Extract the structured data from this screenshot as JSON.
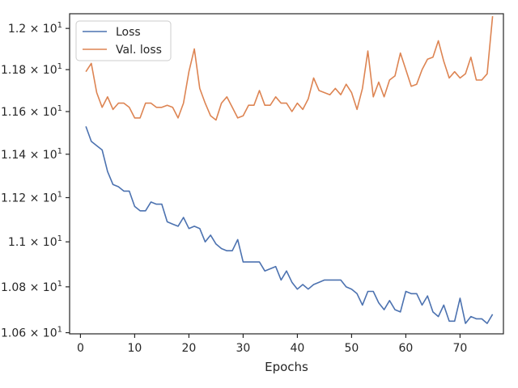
{
  "chart_data": {
    "type": "line",
    "title": "",
    "xlabel": "Epochs",
    "ylabel": "",
    "xlim": [
      -2,
      78
    ],
    "ylim": [
      10.595,
      12.072
    ],
    "yscale": "log",
    "grid": false,
    "legend_position": "upper-left",
    "x_ticks": [
      0,
      10,
      20,
      30,
      40,
      50,
      60,
      70
    ],
    "x_tick_labels": [
      "0",
      "10",
      "20",
      "30",
      "40",
      "50",
      "60",
      "70"
    ],
    "y_ticks": [
      10.6,
      10.8,
      11.0,
      11.2,
      11.4,
      11.6,
      11.8,
      12.0
    ],
    "y_tick_labels": [
      {
        "mantissa": "1.06",
        "base": "10",
        "exp": "1"
      },
      {
        "mantissa": "1.08",
        "base": "10",
        "exp": "1"
      },
      {
        "mantissa": "1.1",
        "base": "10",
        "exp": "1"
      },
      {
        "mantissa": "1.12",
        "base": "10",
        "exp": "1"
      },
      {
        "mantissa": "1.14",
        "base": "10",
        "exp": "1"
      },
      {
        "mantissa": "1.16",
        "base": "10",
        "exp": "1"
      },
      {
        "mantissa": "1.18",
        "base": "10",
        "exp": "1"
      },
      {
        "mantissa": "1.2",
        "base": "10",
        "exp": "1"
      }
    ],
    "series": [
      {
        "name": "Loss",
        "color": "#4c72b0",
        "x": [
          1,
          2,
          3,
          4,
          5,
          6,
          7,
          8,
          9,
          10,
          11,
          12,
          13,
          14,
          15,
          16,
          17,
          18,
          19,
          20,
          21,
          22,
          23,
          24,
          25,
          26,
          27,
          28,
          29,
          30,
          31,
          32,
          33,
          34,
          35,
          36,
          37,
          38,
          39,
          40,
          41,
          42,
          43,
          44,
          45,
          46,
          47,
          48,
          49,
          50,
          51,
          52,
          53,
          54,
          55,
          56,
          57,
          58,
          59,
          60,
          61,
          62,
          63,
          64,
          65,
          66,
          67,
          68,
          69,
          70,
          71,
          72,
          73,
          74,
          75,
          76
        ],
        "y": [
          11.53,
          11.46,
          11.44,
          11.42,
          11.32,
          11.26,
          11.25,
          11.23,
          11.23,
          11.16,
          11.14,
          11.14,
          11.18,
          11.17,
          11.17,
          11.09,
          11.08,
          11.07,
          11.11,
          11.06,
          11.07,
          11.06,
          11.0,
          11.03,
          10.99,
          10.97,
          10.96,
          10.96,
          11.01,
          10.91,
          10.91,
          10.91,
          10.91,
          10.87,
          10.88,
          10.89,
          10.83,
          10.87,
          10.82,
          10.79,
          10.81,
          10.79,
          10.81,
          10.82,
          10.83,
          10.83,
          10.83,
          10.83,
          10.8,
          10.79,
          10.77,
          10.72,
          10.78,
          10.78,
          10.73,
          10.7,
          10.74,
          10.7,
          10.69,
          10.78,
          10.77,
          10.77,
          10.72,
          10.76,
          10.69,
          10.67,
          10.72,
          10.65,
          10.65,
          10.75,
          10.64,
          10.67,
          10.66,
          10.66,
          10.64,
          10.68
        ]
      },
      {
        "name": "Val. loss",
        "color": "#dd8452",
        "x": [
          1,
          2,
          3,
          4,
          5,
          6,
          7,
          8,
          9,
          10,
          11,
          12,
          13,
          14,
          15,
          16,
          17,
          18,
          19,
          20,
          21,
          22,
          23,
          24,
          25,
          26,
          27,
          28,
          29,
          30,
          31,
          32,
          33,
          34,
          35,
          36,
          37,
          38,
          39,
          40,
          41,
          42,
          43,
          44,
          45,
          46,
          47,
          48,
          49,
          50,
          51,
          52,
          53,
          54,
          55,
          56,
          57,
          58,
          59,
          60,
          61,
          62,
          63,
          64,
          65,
          66,
          67,
          68,
          69,
          70,
          71,
          72,
          73,
          74,
          75,
          76
        ],
        "y": [
          11.79,
          11.83,
          11.69,
          11.62,
          11.67,
          11.61,
          11.64,
          11.64,
          11.62,
          11.57,
          11.57,
          11.64,
          11.64,
          11.62,
          11.62,
          11.63,
          11.62,
          11.57,
          11.64,
          11.79,
          11.9,
          11.71,
          11.64,
          11.58,
          11.56,
          11.64,
          11.67,
          11.62,
          11.57,
          11.58,
          11.63,
          11.63,
          11.7,
          11.63,
          11.63,
          11.67,
          11.64,
          11.64,
          11.6,
          11.64,
          11.61,
          11.66,
          11.76,
          11.7,
          11.69,
          11.68,
          11.71,
          11.68,
          11.73,
          11.69,
          11.61,
          11.71,
          11.89,
          11.67,
          11.74,
          11.67,
          11.75,
          11.77,
          11.88,
          11.8,
          11.72,
          11.73,
          11.8,
          11.85,
          11.86,
          11.94,
          11.84,
          11.76,
          11.79,
          11.76,
          11.78,
          11.86,
          11.75,
          11.75,
          11.78,
          12.06
        ]
      }
    ]
  }
}
